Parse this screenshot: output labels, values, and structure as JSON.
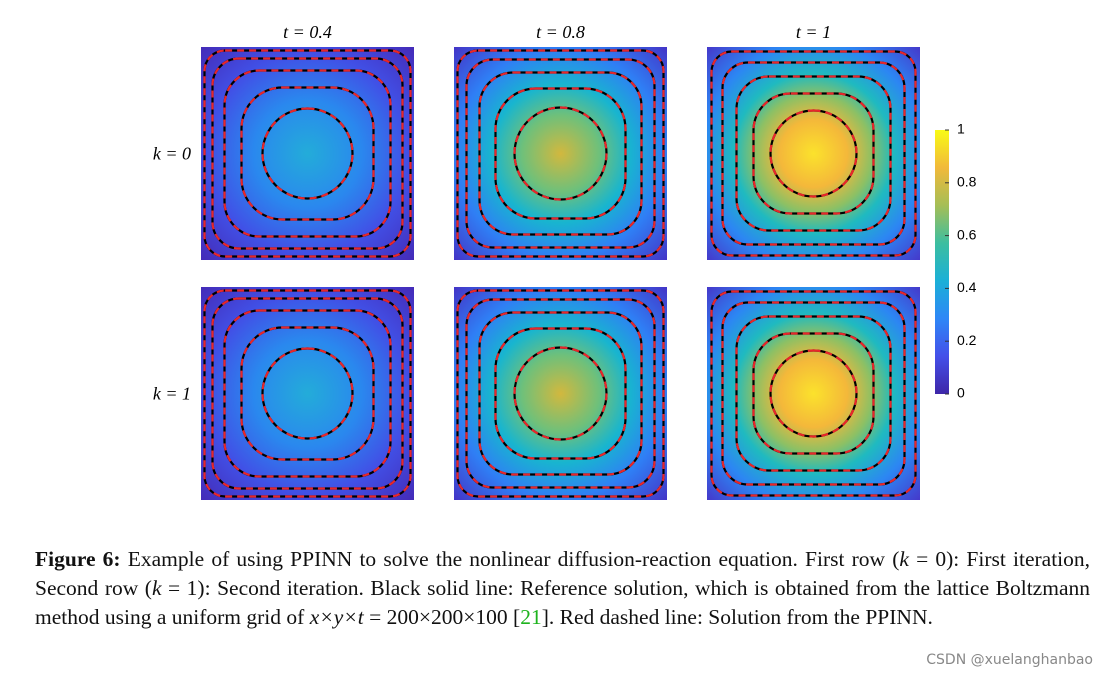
{
  "figure": {
    "column_titles": [
      "t = 0.4",
      "t = 0.8",
      "t = 1"
    ],
    "row_labels": [
      "k = 0",
      "k = 1"
    ],
    "colorbar": {
      "lim": [
        0,
        1
      ],
      "ticks": [
        0,
        0.2,
        0.4,
        0.6,
        0.8,
        1
      ],
      "colors": [
        "#3e26a8",
        "#4450e9",
        "#2e87f7",
        "#1bb0d7",
        "#3cbea0",
        "#a5be56",
        "#f1b93a",
        "#f9fb15"
      ]
    }
  },
  "caption": {
    "runs": [
      "Figure 6:",
      " Example of using PPINN to solve the nonlinear diffusion-reaction equation. First row (",
      "k",
      " = 0): First iteration, Second row (",
      "k",
      " = 1): Second iteration. Black solid line: Reference solution, which is obtained from the lattice Boltzmann method using a uniform grid of ",
      "x×y×t",
      " = 200×200×100 ",
      "[",
      "21",
      "]. Red dashed line: Solution from the PPINN."
    ]
  },
  "watermark": "CSDN @xuelanghanbao"
}
